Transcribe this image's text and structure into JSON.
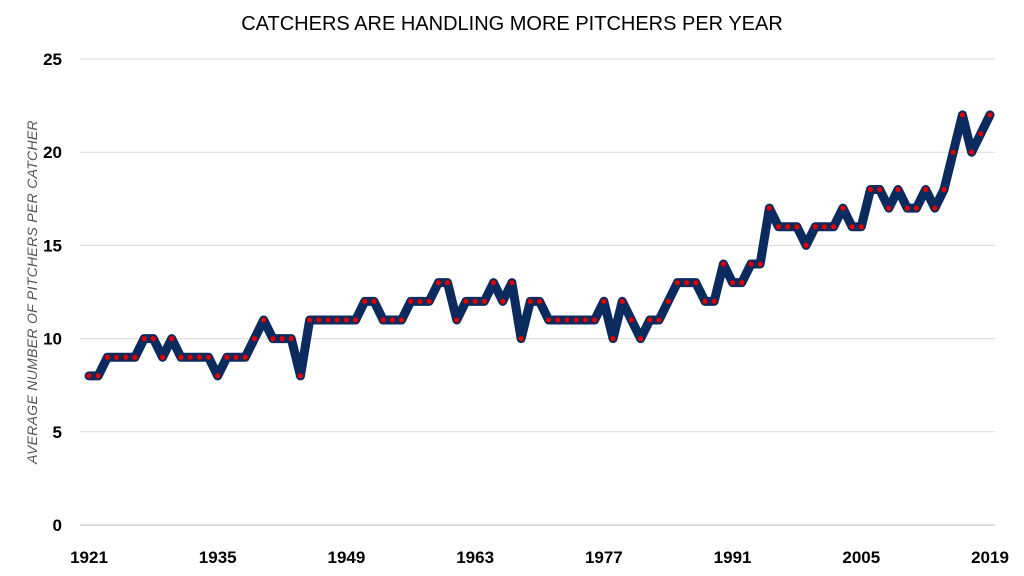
{
  "chart_data": {
    "type": "line",
    "title": "CATCHERS ARE HANDLING MORE PITCHERS PER YEAR",
    "xlabel": "",
    "ylabel": "AVERAGE NUMBER OF PITCHERS PER CATCHER",
    "xlim": [
      1921,
      2019
    ],
    "ylim": [
      0,
      25
    ],
    "x_ticks": [
      "1921",
      "1935",
      "1949",
      "1963",
      "1977",
      "1991",
      "2005",
      "2019"
    ],
    "y_ticks": [
      "0",
      "5",
      "10",
      "15",
      "20",
      "25"
    ],
    "grid": true,
    "legend": "none",
    "colors": {
      "line": "#0b2a5e",
      "markers": "#e00000"
    },
    "x": [
      1921,
      1922,
      1923,
      1924,
      1925,
      1926,
      1927,
      1928,
      1929,
      1930,
      1931,
      1932,
      1933,
      1934,
      1935,
      1936,
      1937,
      1938,
      1939,
      1940,
      1941,
      1942,
      1943,
      1944,
      1945,
      1946,
      1947,
      1948,
      1949,
      1950,
      1951,
      1952,
      1953,
      1954,
      1955,
      1956,
      1957,
      1958,
      1959,
      1960,
      1961,
      1962,
      1963,
      1964,
      1965,
      1966,
      1967,
      1968,
      1969,
      1970,
      1971,
      1972,
      1973,
      1974,
      1975,
      1976,
      1977,
      1978,
      1979,
      1980,
      1981,
      1982,
      1983,
      1984,
      1985,
      1986,
      1987,
      1988,
      1989,
      1990,
      1991,
      1992,
      1993,
      1994,
      1995,
      1996,
      1997,
      1998,
      1999,
      2000,
      2001,
      2002,
      2003,
      2004,
      2005,
      2006,
      2007,
      2008,
      2009,
      2010,
      2011,
      2012,
      2013,
      2014,
      2015,
      2016,
      2017,
      2018,
      2019
    ],
    "values": [
      8,
      8,
      9,
      9,
      9,
      9,
      10,
      10,
      9,
      10,
      9,
      9,
      9,
      9,
      8,
      9,
      9,
      9,
      10,
      11,
      10,
      10,
      10,
      8,
      11,
      11,
      11,
      11,
      11,
      11,
      12,
      12,
      11,
      11,
      11,
      12,
      12,
      12,
      13,
      13,
      11,
      12,
      12,
      12,
      13,
      12,
      13,
      10,
      12,
      12,
      11,
      11,
      11,
      11,
      11,
      11,
      12,
      10,
      12,
      11,
      10,
      11,
      11,
      12,
      13,
      13,
      13,
      12,
      12,
      14,
      13,
      13,
      14,
      14,
      17,
      16,
      16,
      16,
      15,
      16,
      16,
      16,
      17,
      16,
      16,
      18,
      18,
      17,
      18,
      17,
      17,
      18,
      17,
      18,
      20,
      22,
      20,
      21,
      22
    ]
  }
}
